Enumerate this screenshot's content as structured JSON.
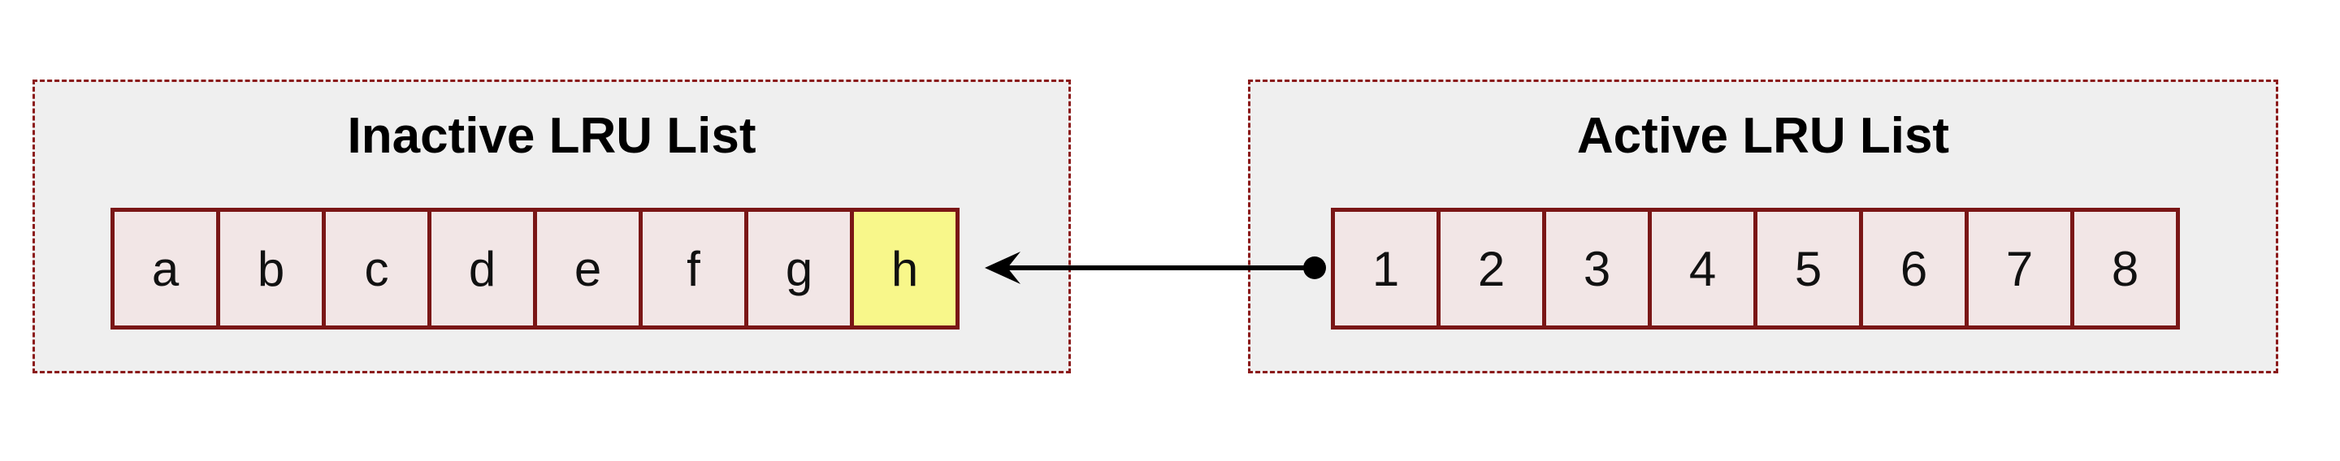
{
  "inactive_list": {
    "title": "Inactive LRU List",
    "items": [
      "a",
      "b",
      "c",
      "d",
      "e",
      "f",
      "g",
      "h"
    ],
    "highlighted_item": "h"
  },
  "active_list": {
    "title": "Active LRU List",
    "items": [
      "1",
      "2",
      "3",
      "4",
      "5",
      "6",
      "7",
      "8"
    ]
  },
  "colors": {
    "panel_background": "#efefef",
    "panel_border": "#8b1a1a",
    "cell_background": "#f2e6e6",
    "cell_border": "#7a1616",
    "highlight": "#f8f78a",
    "arrow": "#000000"
  },
  "connector": {
    "from": "active_list.items.0",
    "to": "inactive_list.items.7",
    "style": "dot-to-arrow"
  }
}
